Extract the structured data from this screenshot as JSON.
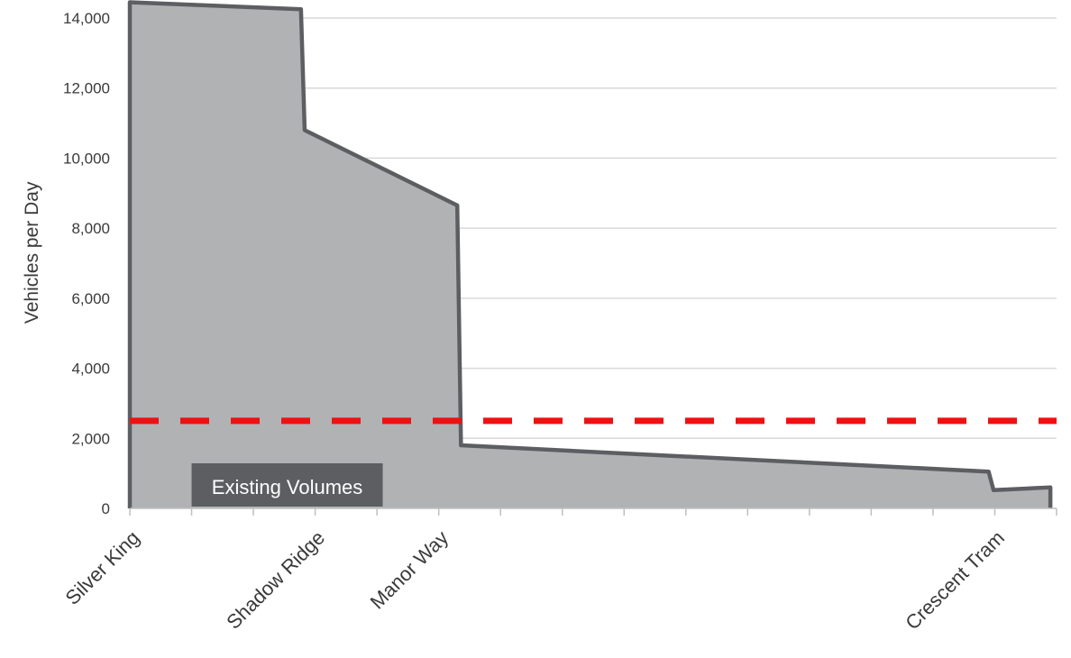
{
  "chart_data": {
    "type": "area",
    "title": "",
    "xlabel": "",
    "ylabel": "Vehicles per Day",
    "ylim": [
      0,
      14000
    ],
    "y_ticks": [
      0,
      2000,
      4000,
      6000,
      8000,
      10000,
      12000,
      14000
    ],
    "y_tick_labels": [
      "0",
      "2,000",
      "4,000",
      "6,000",
      "8,000",
      "10,000",
      "12,000",
      "14,000"
    ],
    "x_range": [
      0,
      15
    ],
    "x_categories": [
      {
        "label": "Silver King",
        "x": 0
      },
      {
        "label": "Shadow Ridge",
        "x": 3
      },
      {
        "label": "Manor Way",
        "x": 5
      },
      {
        "label": "Crescent Tram",
        "x": 14
      }
    ],
    "grid": true,
    "series": [
      {
        "values": [
          {
            "x": 0,
            "y": 14450
          },
          {
            "x": 2.77,
            "y": 14250
          },
          {
            "x": 2.83,
            "y": 10800
          },
          {
            "x": 5.3,
            "y": 8650
          },
          {
            "x": 5.36,
            "y": 1800
          },
          {
            "x": 13.9,
            "y": 1050
          },
          {
            "x": 13.98,
            "y": 520
          },
          {
            "x": 14.9,
            "y": 600
          }
        ],
        "fill_color": "#b1b2b4",
        "line_color": "#5d5e61"
      }
    ],
    "reference_line": {
      "y": 2500,
      "color": "#ee1111",
      "style": "dashed"
    },
    "annotation": {
      "text": "Existing Volumes",
      "x": 1.0,
      "y": 0
    }
  }
}
